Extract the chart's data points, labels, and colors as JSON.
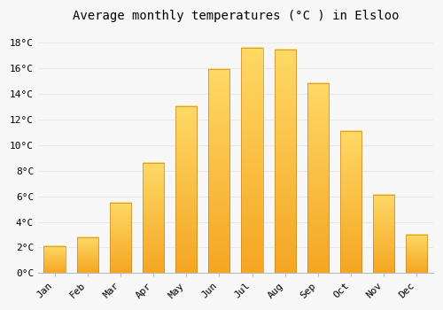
{
  "title": "Average monthly temperatures (°C ) in Elsloo",
  "months": [
    "Jan",
    "Feb",
    "Mar",
    "Apr",
    "May",
    "Jun",
    "Jul",
    "Aug",
    "Sep",
    "Oct",
    "Nov",
    "Dec"
  ],
  "values": [
    2.1,
    2.8,
    5.5,
    8.6,
    13.0,
    15.9,
    17.6,
    17.4,
    14.8,
    11.1,
    6.1,
    3.0
  ],
  "bar_color_bottom": "#F5A623",
  "bar_color_top": "#FFD966",
  "bar_edge_color": "#C8882A",
  "ylim": [
    0,
    19
  ],
  "yticks": [
    0,
    2,
    4,
    6,
    8,
    10,
    12,
    14,
    16,
    18
  ],
  "background_color": "#F7F7F7",
  "grid_color": "#E8E8E8",
  "title_fontsize": 10,
  "tick_fontsize": 8,
  "font_family": "monospace"
}
